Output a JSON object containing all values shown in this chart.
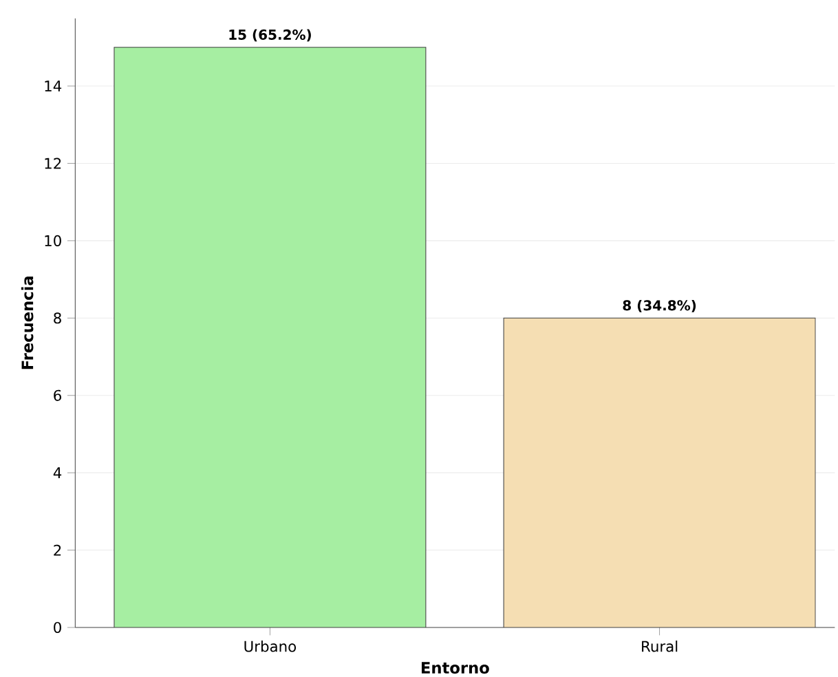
{
  "chart_data": {
    "type": "bar",
    "xlabel": "Entorno",
    "ylabel": "Frecuencia",
    "categories": [
      "Urbano",
      "Rural"
    ],
    "values": [
      15,
      8
    ],
    "colors": [
      "#a6eea2",
      "#f5deb3"
    ],
    "value_labels": [
      "15 (65.2%)",
      "8 (34.8%)"
    ],
    "ylim": [
      0,
      15.75
    ],
    "yticks": [
      0,
      2,
      4,
      6,
      8,
      10,
      12,
      14
    ],
    "grid": "y"
  }
}
